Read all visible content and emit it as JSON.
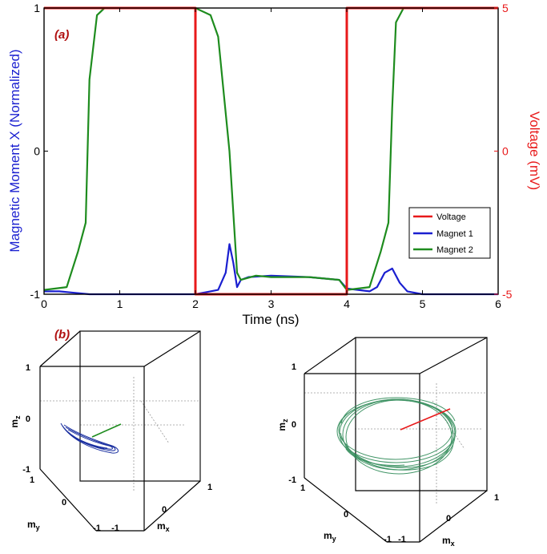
{
  "chart_data": [
    {
      "panel_label": "(a)",
      "type": "line",
      "xlabel": "Time (ns)",
      "ylabel_left": "Magnetic Moment X (Normalized)",
      "ylabel_right": "Voltage (mV)",
      "xlim": [
        0,
        6
      ],
      "ylim_left": [
        -1,
        1
      ],
      "ylim_right": [
        -5,
        5
      ],
      "x_ticks": [
        "0",
        "1",
        "2",
        "3",
        "4",
        "5",
        "6"
      ],
      "y_ticks_left": [
        "-1",
        "0",
        "1"
      ],
      "y_ticks_right": [
        "-5",
        "0",
        "5"
      ],
      "legend": [
        "Voltage",
        "Magnet 1",
        "Magnet 2"
      ],
      "colors": {
        "voltage": "#e8191a",
        "magnet1": "#1a1fd0",
        "magnet2": "#1e8c1e",
        "right_axis": "#e8191a",
        "left_label": "#1a1fd0"
      },
      "series": [
        {
          "name": "Voltage",
          "axis": "right",
          "x": [
            0,
            2,
            2,
            4,
            4,
            6
          ],
          "y": [
            5,
            5,
            -5,
            -5,
            5,
            5
          ]
        },
        {
          "name": "Magnet 1",
          "axis": "left",
          "x": [
            0,
            0.2,
            0.4,
            0.6,
            2.0,
            2.3,
            2.4,
            2.45,
            2.5,
            2.55,
            2.6,
            2.7,
            3.0,
            3.5,
            3.9,
            4.0,
            4.3,
            4.4,
            4.5,
            4.6,
            4.7,
            4.8,
            5.0,
            6.0
          ],
          "y": [
            -0.98,
            -0.98,
            -0.99,
            -1.0,
            -1.0,
            -0.97,
            -0.85,
            -0.65,
            -0.78,
            -0.95,
            -0.9,
            -0.88,
            -0.87,
            -0.88,
            -0.9,
            -0.96,
            -0.98,
            -0.95,
            -0.85,
            -0.82,
            -0.92,
            -0.98,
            -1.0,
            -1.0
          ]
        },
        {
          "name": "Magnet 2",
          "axis": "left",
          "x": [
            0,
            0.3,
            0.45,
            0.55,
            0.6,
            0.7,
            0.8,
            1.0,
            2.0,
            2.2,
            2.3,
            2.45,
            2.55,
            2.6,
            2.8,
            3.0,
            3.5,
            3.9,
            4.0,
            4.3,
            4.45,
            4.55,
            4.6,
            4.65,
            4.75,
            5.0,
            6.0
          ],
          "y": [
            -0.97,
            -0.95,
            -0.7,
            -0.5,
            0.5,
            0.95,
            1.0,
            1.0,
            1.0,
            0.95,
            0.8,
            0.0,
            -0.85,
            -0.9,
            -0.87,
            -0.88,
            -0.88,
            -0.9,
            -0.97,
            -0.95,
            -0.7,
            -0.5,
            0.3,
            0.9,
            1.0,
            1.0,
            1.0
          ]
        }
      ]
    },
    {
      "panel_label": "(b)",
      "type": "scatter",
      "subtype": "3d-trajectory",
      "xlabel": "mx",
      "ylabel": "my",
      "zlabel": "mz",
      "xlim": [
        -1,
        1
      ],
      "ylim": [
        -1,
        1
      ],
      "zlim": [
        -1,
        1
      ],
      "x_ticks": [
        "-1",
        "0",
        "1"
      ],
      "y_ticks": [
        "-1",
        "0",
        "1"
      ],
      "z_ticks": [
        "-1",
        "0",
        "1"
      ],
      "colors": {
        "trajectory": "#1a2fa0",
        "vector": "#1e8c1e"
      }
    },
    {
      "type": "scatter",
      "subtype": "3d-trajectory",
      "xlabel": "mx",
      "ylabel": "my",
      "zlabel": "mz",
      "xlim": [
        -1,
        1
      ],
      "ylim": [
        -1,
        1
      ],
      "zlim": [
        -1,
        1
      ],
      "x_ticks": [
        "-1",
        "0",
        "1"
      ],
      "y_ticks": [
        "-1",
        "0",
        "1"
      ],
      "z_ticks": [
        "-1",
        "0",
        "1"
      ],
      "colors": {
        "trajectory": "#2e8a57",
        "vector": "#e8191a"
      }
    }
  ]
}
